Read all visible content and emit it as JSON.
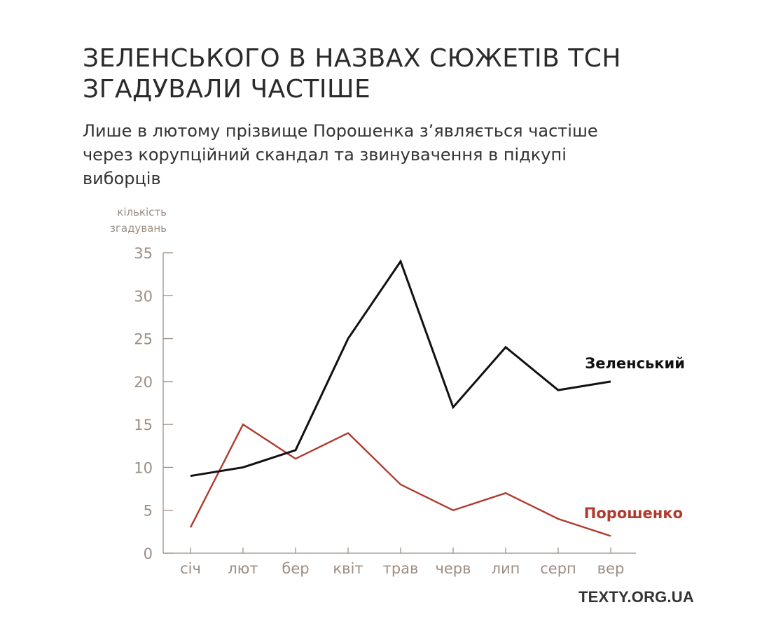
{
  "title_lines": [
    "ЗЕЛЕНСЬКОГО В НАЗВАХ СЮЖЕТІВ ТСН",
    "ЗГАДУВАЛИ ЧАСТІШЕ"
  ],
  "subtitle_lines": [
    "Лише в лютому прізвище Порошенка з’являється частіше",
    "через корупційний скандал та звинувачення в підкупі",
    "виборців"
  ],
  "credit": "TEXTY.ORG.UA",
  "colors": {
    "zelensky": "#111111",
    "poroshenko": "#b03a2e",
    "axis": "#9a8e85"
  },
  "chart_data": {
    "type": "line",
    "title": "ЗЕЛЕНСЬКОГО В НАЗВАХ СЮЖЕТІВ ТСН ЗГАДУВАЛИ ЧАСТІШЕ",
    "subtitle": "Лише в лютому прізвище Порошенка з’являється частіше через корупційний скандал та звинувачення в підкупі виборців",
    "xlabel": "",
    "ylabel_lines": [
      "кількість",
      "згадувань"
    ],
    "categories": [
      "січ",
      "лют",
      "бер",
      "квіт",
      "трав",
      "черв",
      "лип",
      "серп",
      "вер"
    ],
    "ylim": [
      0,
      35
    ],
    "yticks": [
      0,
      5,
      10,
      15,
      20,
      25,
      30,
      35
    ],
    "grid": false,
    "series": [
      {
        "name": "Зеленський",
        "color": "#111111",
        "values": [
          9,
          10,
          12,
          25,
          34,
          17,
          24,
          19,
          20
        ]
      },
      {
        "name": "Порошенко",
        "color": "#b03a2e",
        "values": [
          3,
          15,
          11,
          14,
          8,
          5,
          7,
          4,
          2
        ]
      }
    ]
  }
}
